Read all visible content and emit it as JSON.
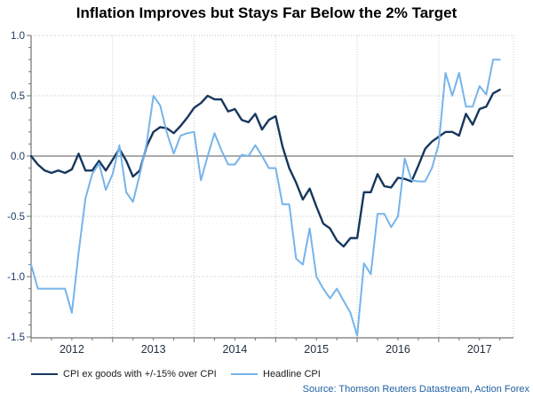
{
  "chart_data": {
    "type": "line",
    "title": "Inflation Improves but Stays Far Below the 2% Target",
    "x_unit": "month",
    "x_start": "2012-01",
    "x_end": "2017-10",
    "year_labels": [
      "2012",
      "2013",
      "2014",
      "2015",
      "2016",
      "2017"
    ],
    "ylim": [
      -1.5,
      1.0
    ],
    "y_ticks": [
      1.0,
      0.5,
      0.0,
      -0.5,
      -1.0,
      -1.5
    ],
    "y_tick_labels": [
      "1.0",
      "0.5",
      "0.0",
      "-0.5",
      "-1.0",
      "-1.5"
    ],
    "grid": "dotted light-gray horizontal every 0.5 and vertical at year starts; solid gray zero line",
    "legend_position": "bottom-left",
    "series": [
      {
        "name": "CPI ex goods with +/-15% over CPI",
        "color": "#17375e",
        "width": 2.4,
        "values": [
          0.0,
          -0.07,
          -0.12,
          -0.14,
          -0.12,
          -0.14,
          -0.11,
          0.02,
          -0.12,
          -0.12,
          -0.04,
          -0.12,
          -0.03,
          0.06,
          -0.04,
          -0.17,
          -0.12,
          0.08,
          0.2,
          0.24,
          0.23,
          0.19,
          0.25,
          0.32,
          0.4,
          0.44,
          0.5,
          0.47,
          0.47,
          0.37,
          0.39,
          0.3,
          0.28,
          0.35,
          0.22,
          0.3,
          0.33,
          0.08,
          -0.1,
          -0.22,
          -0.36,
          -0.27,
          -0.42,
          -0.56,
          -0.6,
          -0.7,
          -0.75,
          -0.68,
          -0.68,
          -0.3,
          -0.3,
          -0.15,
          -0.25,
          -0.26,
          -0.18,
          -0.19,
          -0.21,
          -0.08,
          0.06,
          0.12,
          0.16,
          0.2,
          0.2,
          0.17,
          0.35,
          0.26,
          0.39,
          0.41,
          0.52,
          0.55
        ]
      },
      {
        "name": "Headline CPI",
        "color": "#76b4ea",
        "width": 2.0,
        "values": [
          -0.9,
          -1.1,
          -1.1,
          -1.1,
          -1.1,
          -1.1,
          -1.3,
          -0.8,
          -0.35,
          -0.15,
          -0.06,
          -0.28,
          -0.15,
          0.09,
          -0.3,
          -0.38,
          -0.15,
          0.1,
          0.5,
          0.42,
          0.19,
          0.02,
          0.17,
          0.19,
          0.2,
          -0.2,
          0.0,
          0.19,
          0.05,
          -0.07,
          -0.07,
          0.01,
          0.0,
          0.09,
          0.0,
          -0.1,
          -0.1,
          -0.4,
          -0.4,
          -0.85,
          -0.9,
          -0.6,
          -1.0,
          -1.1,
          -1.18,
          -1.1,
          -1.2,
          -1.3,
          -1.49,
          -0.89,
          -0.98,
          -0.48,
          -0.48,
          -0.59,
          -0.5,
          -0.02,
          -0.2,
          -0.21,
          -0.21,
          -0.1,
          0.1,
          0.69,
          0.5,
          0.69,
          0.41,
          0.41,
          0.58,
          0.51,
          0.8,
          0.8
        ]
      }
    ],
    "source": "Source: Thomson Reuters Datastream, Action Forex"
  },
  "colors": {
    "grid": "#c6c6c6",
    "zero_line": "#8f8f8f",
    "axis": "#737373",
    "y_tick_label": "#1f3864",
    "x_tick_label": "#1f2d3d"
  }
}
